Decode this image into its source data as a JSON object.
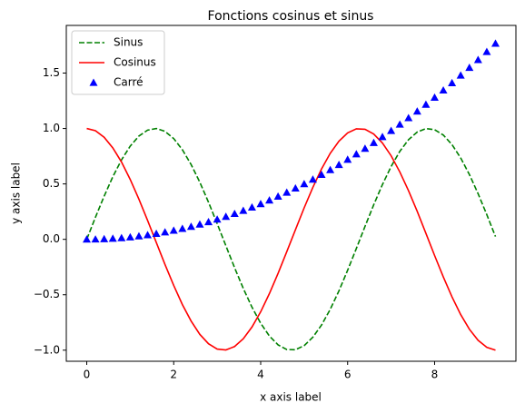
{
  "chart_data": {
    "type": "line",
    "title": "Fonctions cosinus et sinus",
    "x_label": "x axis label",
    "y_label": "y axis label",
    "x": [
      0,
      0.2,
      0.4,
      0.6,
      0.8,
      1.0,
      1.2,
      1.4,
      1.6,
      1.8,
      2.0,
      2.2,
      2.4,
      2.6,
      2.8,
      3.0,
      3.2,
      3.4,
      3.6,
      3.8,
      4.0,
      4.2,
      4.4,
      4.6,
      4.8,
      5.0,
      5.2,
      5.4,
      5.6,
      5.8,
      6.0,
      6.2,
      6.4,
      6.6,
      6.8,
      7.0,
      7.2,
      7.4,
      7.6,
      7.8,
      8.0,
      8.2,
      8.4,
      8.6,
      8.8,
      9.0,
      9.2,
      9.4
    ],
    "series": [
      {
        "name": "Sinus",
        "color": "#008000",
        "style": "dashed",
        "values": [
          0,
          0.199,
          0.389,
          0.565,
          0.717,
          0.841,
          0.932,
          0.985,
          1.0,
          0.974,
          0.909,
          0.808,
          0.675,
          0.516,
          0.335,
          0.141,
          -0.058,
          -0.256,
          -0.443,
          -0.612,
          -0.757,
          -0.872,
          -0.952,
          -0.994,
          -0.996,
          -0.959,
          -0.883,
          -0.773,
          -0.631,
          -0.465,
          -0.279,
          -0.083,
          0.117,
          0.312,
          0.494,
          0.657,
          0.794,
          0.899,
          0.968,
          0.999,
          0.989,
          0.941,
          0.855,
          0.734,
          0.585,
          0.412,
          0.223,
          0.025
        ]
      },
      {
        "name": "Cosinus",
        "color": "#ff0000",
        "style": "solid",
        "values": [
          1,
          0.98,
          0.921,
          0.825,
          0.697,
          0.54,
          0.362,
          0.17,
          -0.029,
          -0.227,
          -0.416,
          -0.589,
          -0.737,
          -0.857,
          -0.942,
          -0.99,
          -0.998,
          -0.967,
          -0.897,
          -0.791,
          -0.654,
          -0.49,
          -0.307,
          -0.112,
          0.087,
          0.284,
          0.469,
          0.635,
          0.776,
          0.886,
          0.96,
          0.997,
          0.993,
          0.95,
          0.869,
          0.754,
          0.608,
          0.439,
          0.253,
          0.054,
          -0.146,
          -0.339,
          -0.519,
          -0.679,
          -0.811,
          -0.911,
          -0.974,
          -1.0
        ]
      },
      {
        "name": "Carré",
        "color": "#0000ff",
        "style": "triangles",
        "values": [
          0,
          0.0008,
          0.0032,
          0.0072,
          0.0128,
          0.02,
          0.0288,
          0.0392,
          0.0512,
          0.0648,
          0.08,
          0.0968,
          0.1152,
          0.1352,
          0.1568,
          0.18,
          0.2048,
          0.2312,
          0.2592,
          0.2888,
          0.32,
          0.3528,
          0.3872,
          0.4232,
          0.4608,
          0.5,
          0.5408,
          0.5832,
          0.6272,
          0.6728,
          0.72,
          0.7688,
          0.8192,
          0.8712,
          0.9248,
          0.98,
          1.0368,
          1.0952,
          1.1552,
          1.2168,
          1.28,
          1.3448,
          1.4112,
          1.4792,
          1.5488,
          1.62,
          1.6928,
          1.7672
        ]
      }
    ],
    "xlim": [
      -0.47,
      9.87
    ],
    "ylim": [
      -1.1,
      1.93
    ],
    "xticks": [
      0,
      2,
      4,
      6,
      8
    ],
    "yticks": [
      {
        "value": -1.0,
        "label": "−1.0"
      },
      {
        "value": -0.5,
        "label": "−0.5"
      },
      {
        "value": 0.0,
        "label": "0.0"
      },
      {
        "value": 0.5,
        "label": "0.5"
      },
      {
        "value": 1.0,
        "label": "1.0"
      },
      {
        "value": 1.5,
        "label": "1.5"
      }
    ],
    "legend": "upper left"
  }
}
